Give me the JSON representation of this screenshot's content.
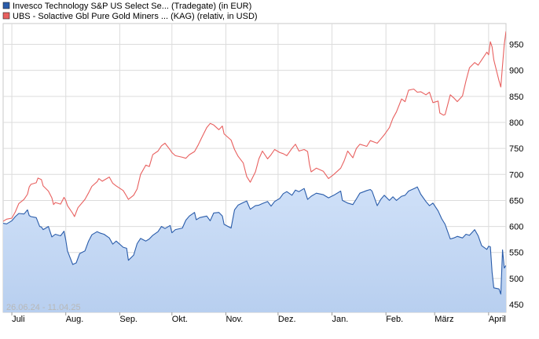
{
  "chart_data": {
    "type": "line",
    "title": "",
    "xlabel": "",
    "ylabel": "",
    "date_range_label": "26.06.24 - 11.04.25",
    "x_tick_labels": [
      "Juli",
      "Aug.",
      "Sep.",
      "Okt.",
      "Nov.",
      "Dez.",
      "Jan.",
      "Feb.",
      "März",
      "April"
    ],
    "x_tick_dates": [
      "2024-07-01",
      "2024-08-01",
      "2024-09-01",
      "2024-10-01",
      "2024-11-01",
      "2024-12-01",
      "2025-01-01",
      "2025-02-01",
      "2025-03-01",
      "2025-04-01"
    ],
    "x_range": [
      "2024-06-26",
      "2025-04-11"
    ],
    "y_ticks": [
      450,
      500,
      550,
      600,
      650,
      700,
      750,
      800,
      850,
      900,
      950
    ],
    "ylim": [
      435,
      990
    ],
    "grid": true,
    "legend_position": "top-left",
    "series": [
      {
        "name": "Invesco Technology S&P US Select Se... (Tradegate) (in EUR)",
        "color": "#2a5caa",
        "fill": "area",
        "points": [
          [
            "2024-06-26",
            606
          ],
          [
            "2024-06-28",
            605
          ],
          [
            "2024-07-01",
            611
          ],
          [
            "2024-07-03",
            619
          ],
          [
            "2024-07-05",
            625
          ],
          [
            "2024-07-08",
            624
          ],
          [
            "2024-07-10",
            632
          ],
          [
            "2024-07-11",
            621
          ],
          [
            "2024-07-12",
            619
          ],
          [
            "2024-07-15",
            617
          ],
          [
            "2024-07-17",
            600
          ],
          [
            "2024-07-18",
            599
          ],
          [
            "2024-07-19",
            594
          ],
          [
            "2024-07-22",
            600
          ],
          [
            "2024-07-24",
            580
          ],
          [
            "2024-07-26",
            585
          ],
          [
            "2024-07-29",
            582
          ],
          [
            "2024-07-31",
            591
          ],
          [
            "2024-08-01",
            574
          ],
          [
            "2024-08-02",
            553
          ],
          [
            "2024-08-05",
            527
          ],
          [
            "2024-08-07",
            530
          ],
          [
            "2024-08-09",
            548
          ],
          [
            "2024-08-12",
            553
          ],
          [
            "2024-08-14",
            571
          ],
          [
            "2024-08-16",
            584
          ],
          [
            "2024-08-19",
            590
          ],
          [
            "2024-08-21",
            587
          ],
          [
            "2024-08-23",
            585
          ],
          [
            "2024-08-26",
            578
          ],
          [
            "2024-08-28",
            566
          ],
          [
            "2024-08-30",
            572
          ],
          [
            "2024-09-03",
            560
          ],
          [
            "2024-09-05",
            558
          ],
          [
            "2024-09-06",
            535
          ],
          [
            "2024-09-09",
            545
          ],
          [
            "2024-09-11",
            567
          ],
          [
            "2024-09-13",
            577
          ],
          [
            "2024-09-16",
            572
          ],
          [
            "2024-09-18",
            576
          ],
          [
            "2024-09-20",
            583
          ],
          [
            "2024-09-23",
            590
          ],
          [
            "2024-09-25",
            600
          ],
          [
            "2024-09-27",
            596
          ],
          [
            "2024-09-30",
            602
          ],
          [
            "2024-10-01",
            588
          ],
          [
            "2024-10-03",
            594
          ],
          [
            "2024-10-07",
            597
          ],
          [
            "2024-10-09",
            612
          ],
          [
            "2024-10-11",
            620
          ],
          [
            "2024-10-14",
            627
          ],
          [
            "2024-10-15",
            613
          ],
          [
            "2024-10-17",
            617
          ],
          [
            "2024-10-21",
            620
          ],
          [
            "2024-10-23",
            611
          ],
          [
            "2024-10-25",
            626
          ],
          [
            "2024-10-28",
            627
          ],
          [
            "2024-10-30",
            620
          ],
          [
            "2024-10-31",
            604
          ],
          [
            "2024-11-04",
            597
          ],
          [
            "2024-11-06",
            632
          ],
          [
            "2024-11-08",
            641
          ],
          [
            "2024-11-11",
            646
          ],
          [
            "2024-11-13",
            649
          ],
          [
            "2024-11-15",
            633
          ],
          [
            "2024-11-18",
            640
          ],
          [
            "2024-11-20",
            641
          ],
          [
            "2024-11-22",
            644
          ],
          [
            "2024-11-25",
            648
          ],
          [
            "2024-11-27",
            639
          ],
          [
            "2024-11-29",
            648
          ],
          [
            "2024-12-02",
            654
          ],
          [
            "2024-12-04",
            663
          ],
          [
            "2024-12-06",
            667
          ],
          [
            "2024-12-09",
            660
          ],
          [
            "2024-12-11",
            670
          ],
          [
            "2024-12-13",
            667
          ],
          [
            "2024-12-16",
            673
          ],
          [
            "2024-12-18",
            652
          ],
          [
            "2024-12-20",
            658
          ],
          [
            "2024-12-23",
            664
          ],
          [
            "2024-12-27",
            661
          ],
          [
            "2024-12-30",
            655
          ],
          [
            "2025-01-02",
            660
          ],
          [
            "2025-01-06",
            668
          ],
          [
            "2025-01-07",
            650
          ],
          [
            "2025-01-10",
            645
          ],
          [
            "2025-01-13",
            642
          ],
          [
            "2025-01-15",
            653
          ],
          [
            "2025-01-17",
            664
          ],
          [
            "2025-01-21",
            669
          ],
          [
            "2025-01-23",
            671
          ],
          [
            "2025-01-24",
            668
          ],
          [
            "2025-01-27",
            640
          ],
          [
            "2025-01-29",
            652
          ],
          [
            "2025-01-31",
            660
          ],
          [
            "2025-02-03",
            650
          ],
          [
            "2025-02-05",
            657
          ],
          [
            "2025-02-07",
            650
          ],
          [
            "2025-02-10",
            658
          ],
          [
            "2025-02-12",
            660
          ],
          [
            "2025-02-14",
            668
          ],
          [
            "2025-02-18",
            674
          ],
          [
            "2025-02-19",
            676
          ],
          [
            "2025-02-21",
            662
          ],
          [
            "2025-02-24",
            648
          ],
          [
            "2025-02-26",
            640
          ],
          [
            "2025-02-28",
            645
          ],
          [
            "2025-03-03",
            630
          ],
          [
            "2025-03-05",
            615
          ],
          [
            "2025-03-07",
            604
          ],
          [
            "2025-03-10",
            576
          ],
          [
            "2025-03-12",
            578
          ],
          [
            "2025-03-14",
            581
          ],
          [
            "2025-03-17",
            578
          ],
          [
            "2025-03-19",
            585
          ],
          [
            "2025-03-21",
            583
          ],
          [
            "2025-03-24",
            594
          ],
          [
            "2025-03-26",
            582
          ],
          [
            "2025-03-28",
            563
          ],
          [
            "2025-03-31",
            556
          ],
          [
            "2025-04-01",
            562
          ],
          [
            "2025-04-02",
            561
          ],
          [
            "2025-04-03",
            512
          ],
          [
            "2025-04-04",
            482
          ],
          [
            "2025-04-07",
            480
          ],
          [
            "2025-04-08",
            470
          ],
          [
            "2025-04-09",
            555
          ],
          [
            "2025-04-10",
            520
          ],
          [
            "2025-04-11",
            525
          ]
        ]
      },
      {
        "name": "UBS - Solactive Gbl Pure Gold Miners ... (KAG) (relativ, in USD)",
        "color": "#e8605f",
        "fill": "none",
        "points": [
          [
            "2024-06-26",
            610
          ],
          [
            "2024-06-28",
            614
          ],
          [
            "2024-07-01",
            616
          ],
          [
            "2024-07-03",
            628
          ],
          [
            "2024-07-05",
            644
          ],
          [
            "2024-07-08",
            652
          ],
          [
            "2024-07-10",
            662
          ],
          [
            "2024-07-11",
            676
          ],
          [
            "2024-07-12",
            681
          ],
          [
            "2024-07-15",
            684
          ],
          [
            "2024-07-16",
            693
          ],
          [
            "2024-07-18",
            690
          ],
          [
            "2024-07-19",
            678
          ],
          [
            "2024-07-22",
            668
          ],
          [
            "2024-07-24",
            655
          ],
          [
            "2024-07-25",
            642
          ],
          [
            "2024-07-26",
            646
          ],
          [
            "2024-07-29",
            643
          ],
          [
            "2024-07-31",
            656
          ],
          [
            "2024-08-01",
            650
          ],
          [
            "2024-08-02",
            640
          ],
          [
            "2024-08-05",
            625
          ],
          [
            "2024-08-06",
            619
          ],
          [
            "2024-08-08",
            636
          ],
          [
            "2024-08-12",
            652
          ],
          [
            "2024-08-14",
            664
          ],
          [
            "2024-08-16",
            677
          ],
          [
            "2024-08-19",
            686
          ],
          [
            "2024-08-20",
            692
          ],
          [
            "2024-08-22",
            687
          ],
          [
            "2024-08-26",
            695
          ],
          [
            "2024-08-28",
            683
          ],
          [
            "2024-08-30",
            678
          ],
          [
            "2024-09-03",
            669
          ],
          [
            "2024-09-05",
            658
          ],
          [
            "2024-09-06",
            652
          ],
          [
            "2024-09-09",
            660
          ],
          [
            "2024-09-11",
            672
          ],
          [
            "2024-09-13",
            700
          ],
          [
            "2024-09-16",
            718
          ],
          [
            "2024-09-18",
            715
          ],
          [
            "2024-09-20",
            738
          ],
          [
            "2024-09-23",
            745
          ],
          [
            "2024-09-25",
            755
          ],
          [
            "2024-09-27",
            760
          ],
          [
            "2024-09-30",
            747
          ],
          [
            "2024-10-01",
            742
          ],
          [
            "2024-10-03",
            736
          ],
          [
            "2024-10-07",
            733
          ],
          [
            "2024-10-09",
            731
          ],
          [
            "2024-10-11",
            738
          ],
          [
            "2024-10-14",
            744
          ],
          [
            "2024-10-16",
            756
          ],
          [
            "2024-10-18",
            770
          ],
          [
            "2024-10-21",
            790
          ],
          [
            "2024-10-23",
            798
          ],
          [
            "2024-10-25",
            795
          ],
          [
            "2024-10-28",
            786
          ],
          [
            "2024-10-30",
            793
          ],
          [
            "2024-10-31",
            778
          ],
          [
            "2024-11-04",
            766
          ],
          [
            "2024-11-06",
            748
          ],
          [
            "2024-11-08",
            735
          ],
          [
            "2024-11-11",
            722
          ],
          [
            "2024-11-13",
            696
          ],
          [
            "2024-11-15",
            685
          ],
          [
            "2024-11-18",
            705
          ],
          [
            "2024-11-20",
            730
          ],
          [
            "2024-11-22",
            745
          ],
          [
            "2024-11-25",
            730
          ],
          [
            "2024-11-27",
            738
          ],
          [
            "2024-11-29",
            748
          ],
          [
            "2024-12-02",
            742
          ],
          [
            "2024-12-04",
            740
          ],
          [
            "2024-12-06",
            736
          ],
          [
            "2024-12-09",
            750
          ],
          [
            "2024-12-11",
            758
          ],
          [
            "2024-12-13",
            745
          ],
          [
            "2024-12-16",
            748
          ],
          [
            "2024-12-18",
            744
          ],
          [
            "2024-12-19",
            720
          ],
          [
            "2024-12-20",
            705
          ],
          [
            "2024-12-23",
            712
          ],
          [
            "2024-12-27",
            706
          ],
          [
            "2024-12-30",
            692
          ],
          [
            "2025-01-02",
            700
          ],
          [
            "2025-01-06",
            712
          ],
          [
            "2025-01-08",
            726
          ],
          [
            "2025-01-10",
            745
          ],
          [
            "2025-01-13",
            732
          ],
          [
            "2025-01-15",
            750
          ],
          [
            "2025-01-17",
            758
          ],
          [
            "2025-01-21",
            754
          ],
          [
            "2025-01-23",
            765
          ],
          [
            "2025-01-27",
            760
          ],
          [
            "2025-01-29",
            768
          ],
          [
            "2025-01-31",
            776
          ],
          [
            "2025-02-03",
            790
          ],
          [
            "2025-02-05",
            808
          ],
          [
            "2025-02-07",
            820
          ],
          [
            "2025-02-10",
            845
          ],
          [
            "2025-02-12",
            840
          ],
          [
            "2025-02-14",
            862
          ],
          [
            "2025-02-17",
            864
          ],
          [
            "2025-02-19",
            858
          ],
          [
            "2025-02-21",
            859
          ],
          [
            "2025-02-24",
            853
          ],
          [
            "2025-02-26",
            858
          ],
          [
            "2025-02-28",
            838
          ],
          [
            "2025-03-03",
            841
          ],
          [
            "2025-03-04",
            818
          ],
          [
            "2025-03-06",
            814
          ],
          [
            "2025-03-07",
            815
          ],
          [
            "2025-03-10",
            853
          ],
          [
            "2025-03-12",
            847
          ],
          [
            "2025-03-14",
            840
          ],
          [
            "2025-03-17",
            851
          ],
          [
            "2025-03-19",
            880
          ],
          [
            "2025-03-21",
            905
          ],
          [
            "2025-03-24",
            915
          ],
          [
            "2025-03-26",
            910
          ],
          [
            "2025-03-28",
            920
          ],
          [
            "2025-03-31",
            935
          ],
          [
            "2025-04-01",
            930
          ],
          [
            "2025-04-02",
            955
          ],
          [
            "2025-04-03",
            945
          ],
          [
            "2025-04-04",
            920
          ],
          [
            "2025-04-07",
            880
          ],
          [
            "2025-04-08",
            868
          ],
          [
            "2025-04-09",
            910
          ],
          [
            "2025-04-10",
            950
          ],
          [
            "2025-04-11",
            975
          ]
        ]
      }
    ]
  }
}
